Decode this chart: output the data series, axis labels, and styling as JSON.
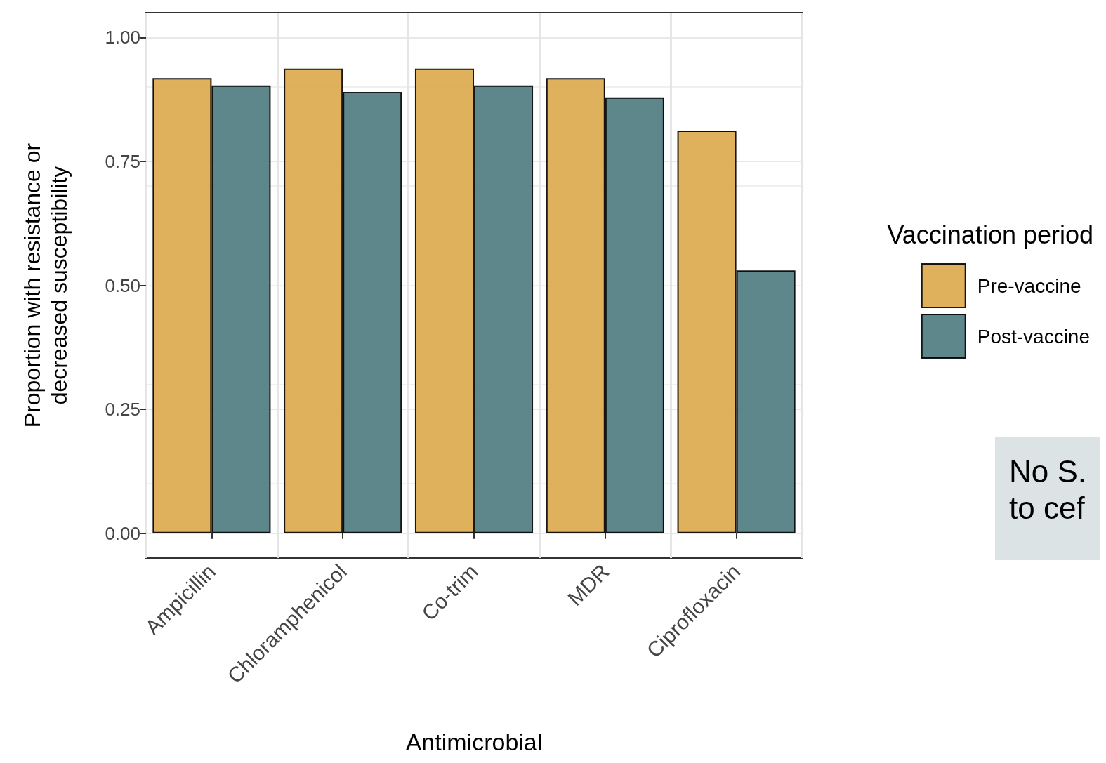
{
  "chart_data": {
    "type": "bar",
    "xlabel": "Antimicrobial",
    "ylabel": "Proportion with resistance or\ndecreased susceptibility",
    "legend_title": "Vaccination period",
    "categories": [
      "Ampicillin",
      "Chloramphenicol",
      "Co-trim",
      "MDR",
      "Ciprofloxacin"
    ],
    "series": [
      {
        "name": "Pre-vaccine",
        "color": "#dba84a",
        "values": [
          0.918,
          0.937,
          0.937,
          0.918,
          0.812
        ]
      },
      {
        "name": "Post-vaccine",
        "color": "#4b7a7e",
        "values": [
          0.903,
          0.89,
          0.903,
          0.879,
          0.53
        ]
      }
    ],
    "ylim": [
      -0.05,
      1.05
    ],
    "yticks": [
      {
        "value": 0,
        "label": "0.00"
      },
      0.25,
      {
        "value": 0.5,
        "label": "0.50"
      },
      0.75,
      {
        "value": 1,
        "label": "1.00"
      }
    ],
    "grid": true,
    "legend": "right",
    "annotations": [
      "No S.\nto cef"
    ]
  }
}
